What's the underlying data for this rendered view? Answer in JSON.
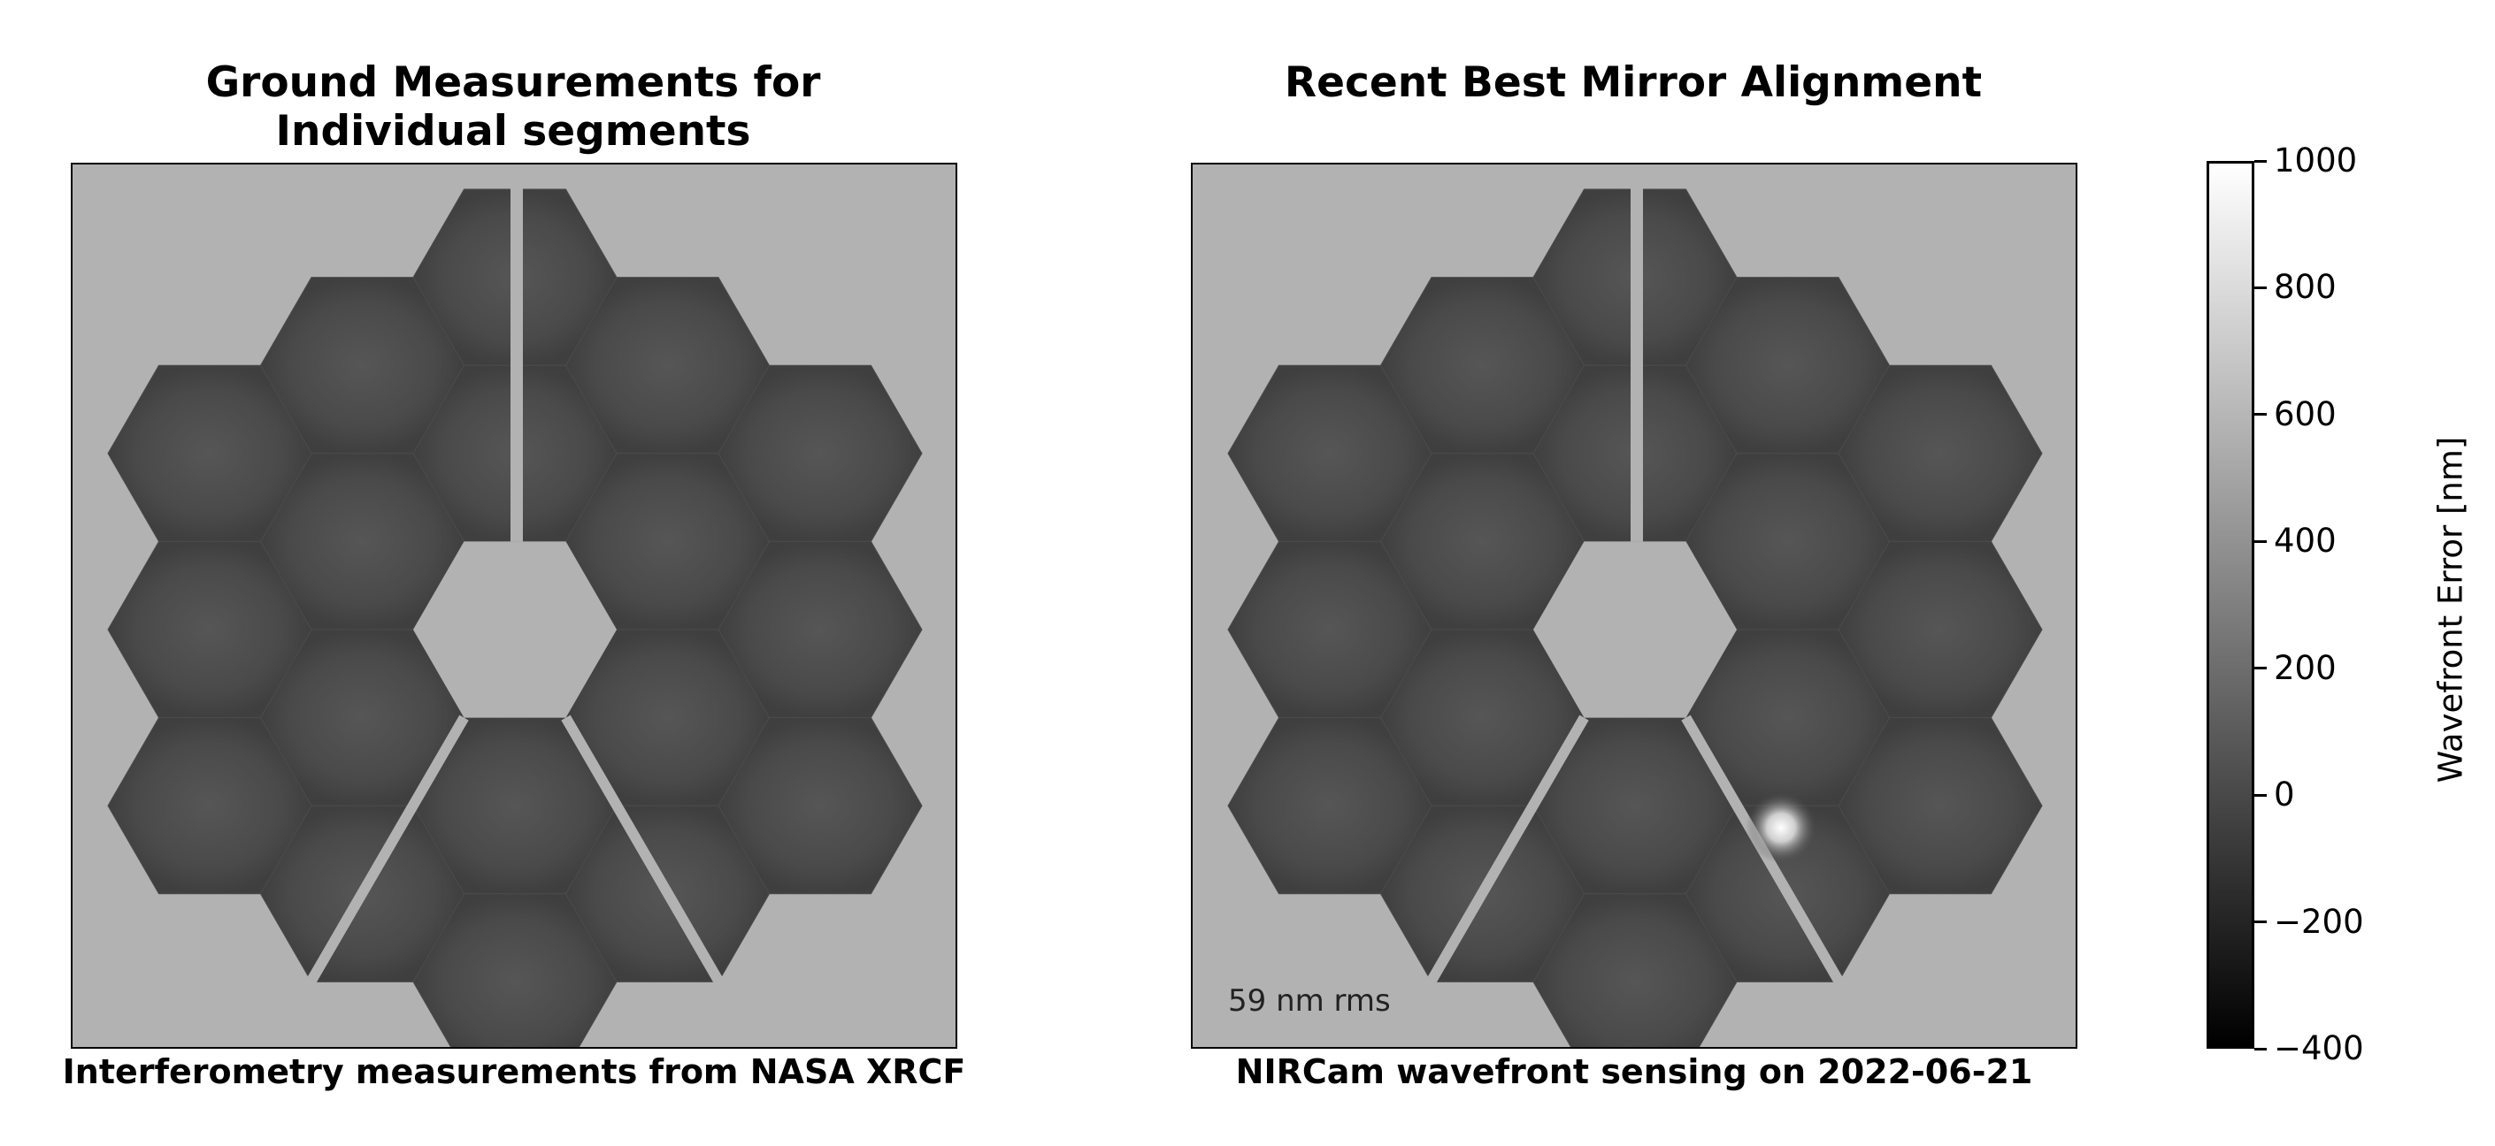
{
  "chart_data": [
    {
      "type": "heatmap",
      "title": "Ground Measurements for\nIndividual segments",
      "title_lines": [
        "Ground Measurements for",
        "Individual segments"
      ],
      "xlabel": "Interferometry measurements from NASA XRCF",
      "annotation": ""
    },
    {
      "type": "heatmap",
      "title": "Recent Best Mirror Alignment",
      "xlabel": "NIRCam wavefront sensing on 2022-06-21",
      "annotation": "59 nm rms"
    }
  ],
  "colorbar": {
    "label": "Wavefront Error [nm]",
    "range": [
      -400,
      1000
    ],
    "ticks": [
      1000,
      800,
      600,
      400,
      200,
      0,
      -200,
      -400
    ],
    "tick_labels": [
      "1000",
      "800",
      "600",
      "400",
      "200",
      "0",
      "−200",
      "−400"
    ],
    "colormap": "gray",
    "background_color": "#b2b2b2",
    "segment_color": "#4b4b4b"
  }
}
